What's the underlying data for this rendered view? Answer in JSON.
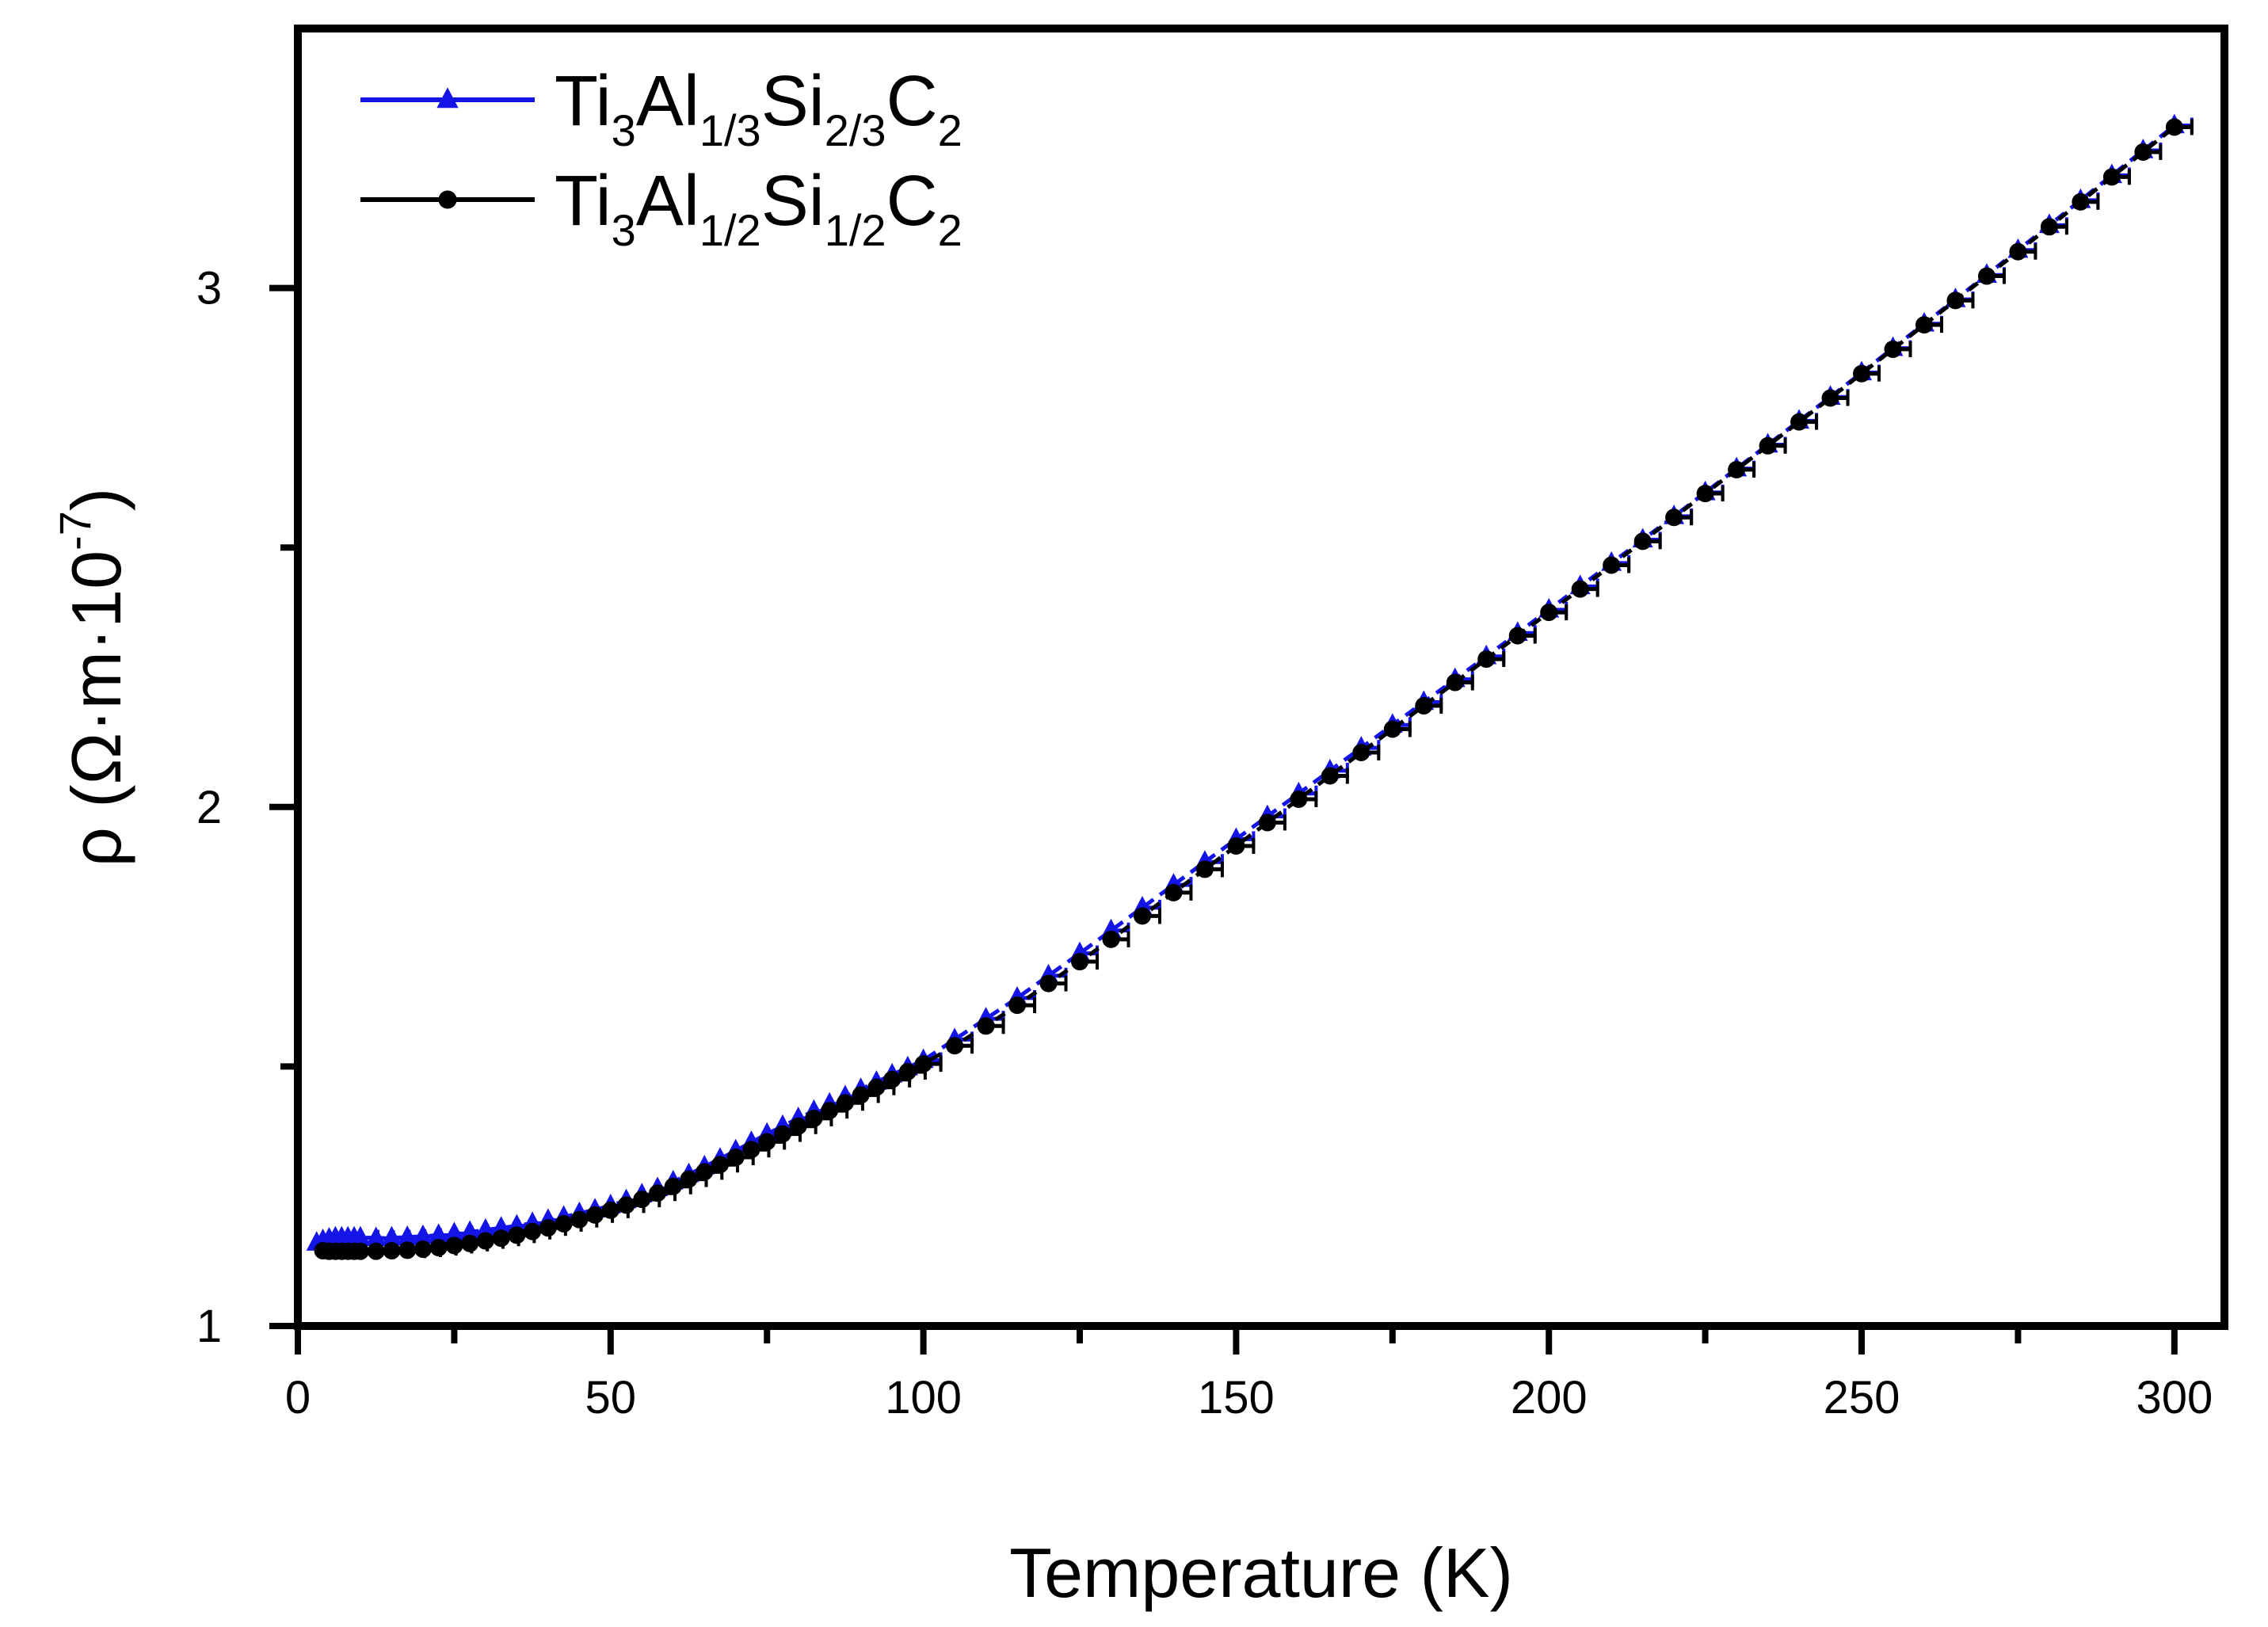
{
  "chart_data": {
    "type": "line",
    "title": "",
    "xlabel": "Temperature (K)",
    "ylabel": "ρ (Ω·m·10",
    "ylabel_sup": "-7",
    "ylabel_close": ")",
    "xlim": [
      0,
      308
    ],
    "ylim": [
      1.0,
      3.5
    ],
    "x_major_ticks": [
      0,
      50,
      100,
      150,
      200,
      250,
      300
    ],
    "x_minor_ticks": [
      25,
      75,
      125,
      175,
      225,
      275
    ],
    "x_tick_labels": [
      "0",
      "50",
      "100",
      "150",
      "200",
      "250",
      "300"
    ],
    "y_major_ticks": [
      1,
      2,
      3
    ],
    "y_minor_ticks": [
      1.5,
      2.5
    ],
    "y_tick_labels": [
      "1",
      "2",
      "3"
    ],
    "legend_position": "top-left",
    "series": [
      {
        "name": "Ti3Al1/3Si2/3C2",
        "label_parts": [
          [
            "Ti",
            ""
          ],
          [
            "3",
            "sub"
          ],
          [
            "Al",
            ""
          ],
          [
            "1/3",
            "sub"
          ],
          [
            "Si",
            ""
          ],
          [
            "2/3",
            "sub"
          ],
          [
            "C",
            ""
          ],
          [
            "2",
            "sub"
          ]
        ],
        "color": "#1414e6",
        "marker": "triangle",
        "x": [
          3,
          4,
          5,
          6,
          7,
          8,
          9,
          10,
          12.5,
          15,
          17.5,
          20,
          22.5,
          25,
          27.5,
          30,
          32.5,
          35,
          37.5,
          40,
          42.5,
          45,
          47.5,
          50,
          52.5,
          55,
          57.5,
          60,
          62.5,
          65,
          67.5,
          70,
          72.5,
          75,
          77.5,
          80,
          82.5,
          85,
          87.5,
          90,
          92.5,
          95,
          97.5,
          100,
          105,
          110,
          115,
          120,
          125,
          130,
          135,
          140,
          145,
          150,
          155,
          160,
          165,
          170,
          175,
          180,
          185,
          190,
          195,
          200,
          205,
          210,
          215,
          220,
          225,
          230,
          235,
          240,
          245,
          250,
          255,
          260,
          265,
          270,
          275,
          280,
          285,
          290,
          295,
          300
        ],
        "y": [
          1.16,
          1.165,
          1.168,
          1.17,
          1.17,
          1.17,
          1.17,
          1.17,
          1.169,
          1.17,
          1.171,
          1.173,
          1.175,
          1.178,
          1.181,
          1.185,
          1.189,
          1.193,
          1.198,
          1.204,
          1.21,
          1.217,
          1.224,
          1.232,
          1.242,
          1.253,
          1.265,
          1.278,
          1.292,
          1.307,
          1.322,
          1.338,
          1.354,
          1.37,
          1.385,
          1.4,
          1.414,
          1.428,
          1.442,
          1.456,
          1.47,
          1.484,
          1.498,
          1.512,
          1.552,
          1.592,
          1.632,
          1.675,
          1.718,
          1.762,
          1.806,
          1.85,
          1.894,
          1.938,
          1.982,
          2.026,
          2.07,
          2.114,
          2.158,
          2.202,
          2.246,
          2.29,
          2.335,
          2.38,
          2.425,
          2.47,
          2.515,
          2.56,
          2.606,
          2.652,
          2.698,
          2.744,
          2.79,
          2.837,
          2.884,
          2.931,
          2.978,
          3.025,
          3.073,
          3.121,
          3.169,
          3.217,
          3.265,
          3.313
        ]
      },
      {
        "name": "Ti3Al1/2Si1/2C2",
        "label_parts": [
          [
            "Ti",
            ""
          ],
          [
            "3",
            "sub"
          ],
          [
            "Al",
            ""
          ],
          [
            "1/2",
            "sub"
          ],
          [
            "Si",
            ""
          ],
          [
            "1/2",
            "sub"
          ],
          [
            "C",
            ""
          ],
          [
            "2",
            "sub"
          ]
        ],
        "color": "#000000",
        "marker": "circle",
        "x": [
          4,
          5,
          6,
          7,
          8,
          9,
          10,
          12.5,
          15,
          17.5,
          20,
          22.5,
          25,
          27.5,
          30,
          32.5,
          35,
          37.5,
          40,
          42.5,
          45,
          47.5,
          50,
          52.5,
          55,
          57.5,
          60,
          62.5,
          65,
          67.5,
          70,
          72.5,
          75,
          77.5,
          80,
          82.5,
          85,
          87.5,
          90,
          92.5,
          95,
          97.5,
          100,
          105,
          110,
          115,
          120,
          125,
          130,
          135,
          140,
          145,
          150,
          155,
          160,
          165,
          170,
          175,
          180,
          185,
          190,
          195,
          200,
          205,
          210,
          215,
          220,
          225,
          230,
          235,
          240,
          245,
          250,
          255,
          260,
          265,
          270,
          275,
          280,
          285,
          290,
          295,
          300
        ],
        "y": [
          1.145,
          1.144,
          1.144,
          1.144,
          1.144,
          1.144,
          1.144,
          1.144,
          1.145,
          1.146,
          1.148,
          1.151,
          1.155,
          1.159,
          1.164,
          1.169,
          1.175,
          1.182,
          1.189,
          1.197,
          1.205,
          1.214,
          1.223,
          1.233,
          1.244,
          1.256,
          1.269,
          1.283,
          1.297,
          1.311,
          1.325,
          1.34,
          1.355,
          1.37,
          1.385,
          1.4,
          1.415,
          1.43,
          1.445,
          1.46,
          1.475,
          1.49,
          1.505,
          1.54,
          1.578,
          1.618,
          1.66,
          1.702,
          1.745,
          1.79,
          1.835,
          1.88,
          1.925,
          1.97,
          2.015,
          2.06,
          2.105,
          2.15,
          2.195,
          2.24,
          2.285,
          2.33,
          2.375,
          2.42,
          2.466,
          2.512,
          2.558,
          2.604,
          2.65,
          2.696,
          2.742,
          2.788,
          2.835,
          2.882,
          2.929,
          2.976,
          3.023,
          3.07,
          3.118,
          3.166,
          3.214,
          3.262,
          3.31
        ]
      }
    ]
  }
}
